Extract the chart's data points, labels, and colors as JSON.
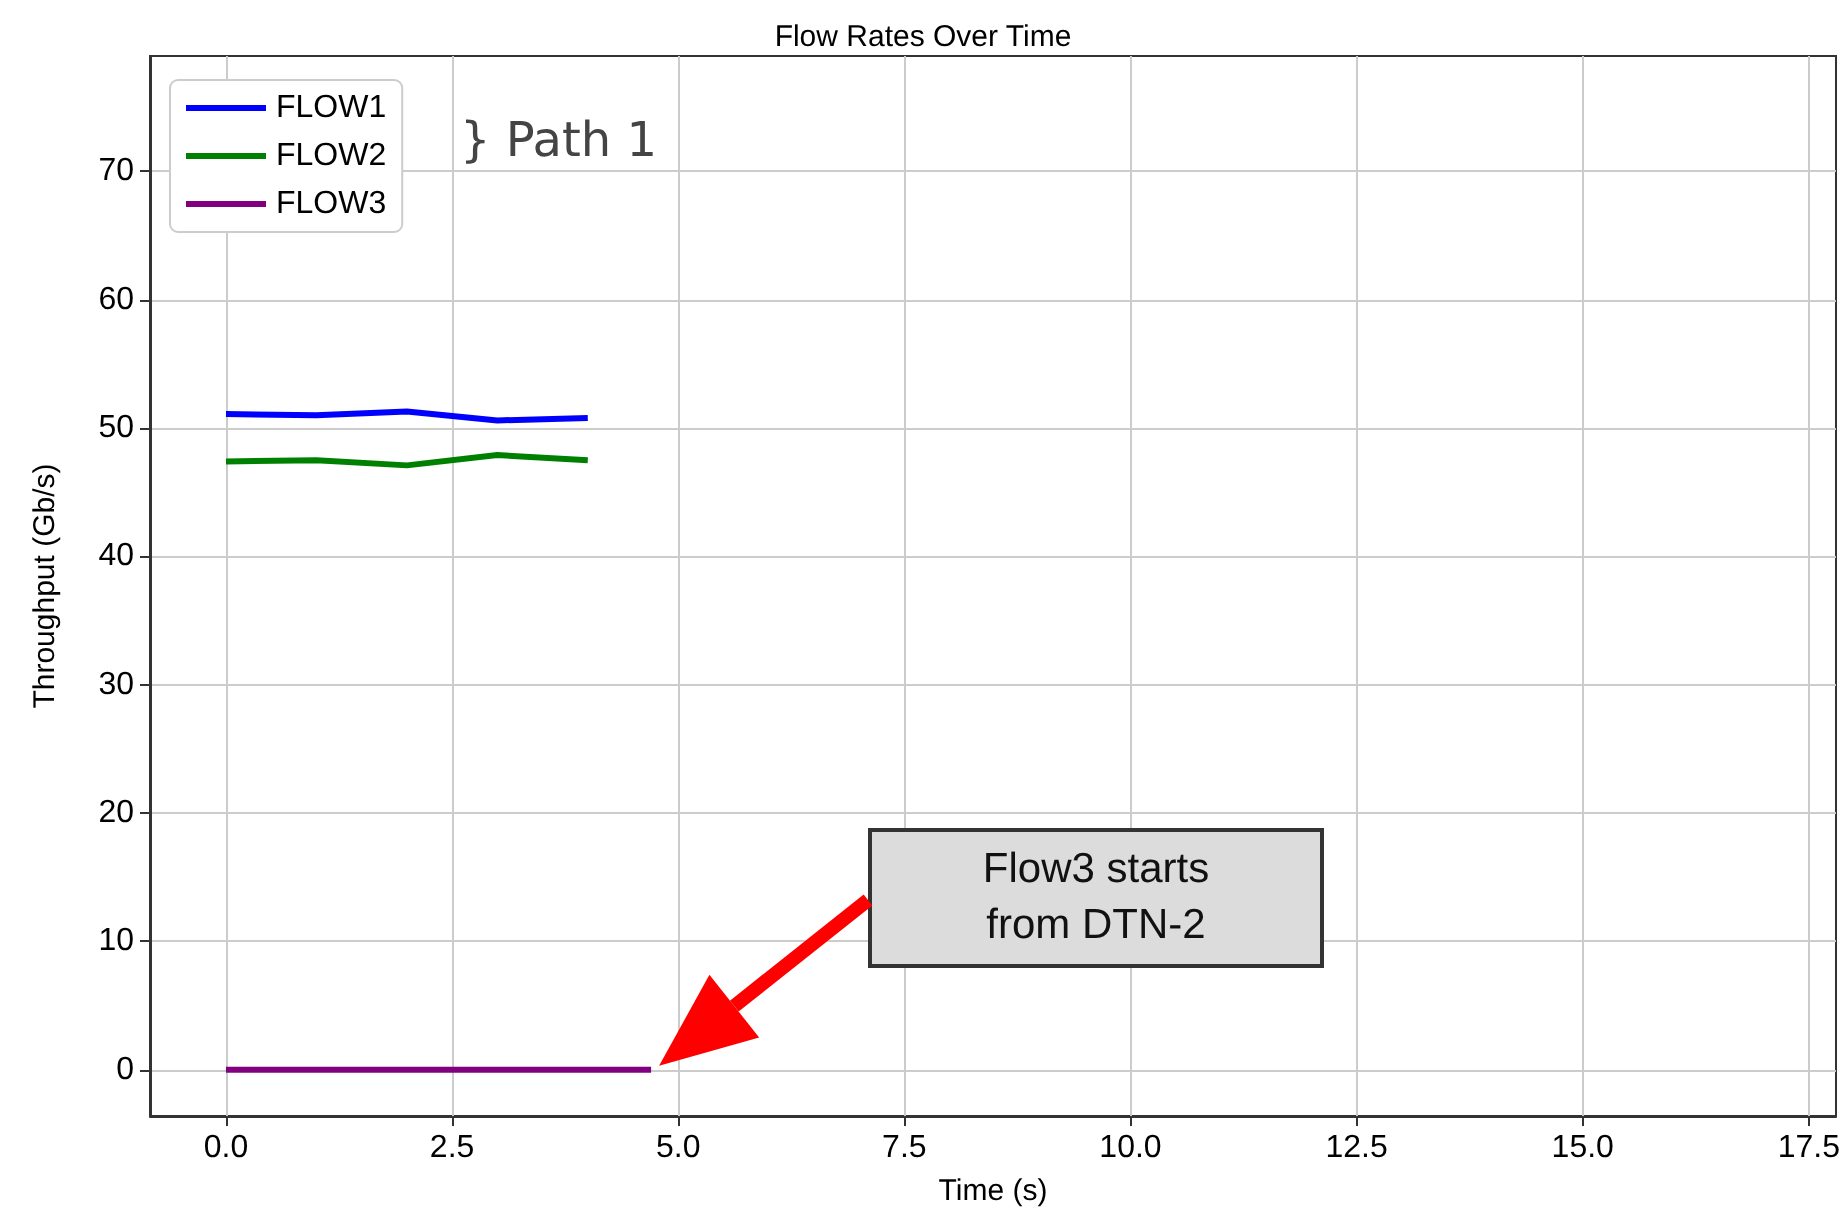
{
  "chart_data": {
    "type": "line",
    "title": "Flow Rates Over Time",
    "xlabel": "Time (s)",
    "ylabel": "Throughput (Gb/s)",
    "series": [
      {
        "name": "FLOW1",
        "color": "#0000ff",
        "x": [
          0,
          1,
          2,
          3,
          4
        ],
        "values": [
          51.1,
          51.0,
          51.3,
          50.6,
          50.8
        ]
      },
      {
        "name": "FLOW2",
        "color": "#008000",
        "x": [
          0,
          1,
          2,
          3,
          4
        ],
        "values": [
          47.4,
          47.5,
          47.1,
          47.9,
          47.5
        ]
      },
      {
        "name": "FLOW3",
        "color": "#800080",
        "x": [
          0,
          1,
          2,
          3,
          4,
          4.7
        ],
        "values": [
          0,
          0,
          0,
          0,
          0,
          0
        ]
      }
    ],
    "xlim": [
      -0.84,
      17.8
    ],
    "xticks": [
      {
        "value": 0,
        "label": "0.0"
      },
      2.5,
      {
        "value": 5,
        "label": "5.0"
      },
      7.5,
      {
        "value": 10,
        "label": "10.0"
      },
      12.5,
      {
        "value": 15,
        "label": "15.0"
      },
      17.5
    ],
    "ylim": [
      -3.6,
      79
    ],
    "yticks": [
      0,
      10,
      20,
      30,
      40,
      50,
      60,
      70
    ],
    "annotations": [
      "} Path 1",
      "Flow3 starts from DTN-2"
    ],
    "grid": true,
    "legend": "top left",
    "marker": "none",
    "line_style": "solid"
  }
}
